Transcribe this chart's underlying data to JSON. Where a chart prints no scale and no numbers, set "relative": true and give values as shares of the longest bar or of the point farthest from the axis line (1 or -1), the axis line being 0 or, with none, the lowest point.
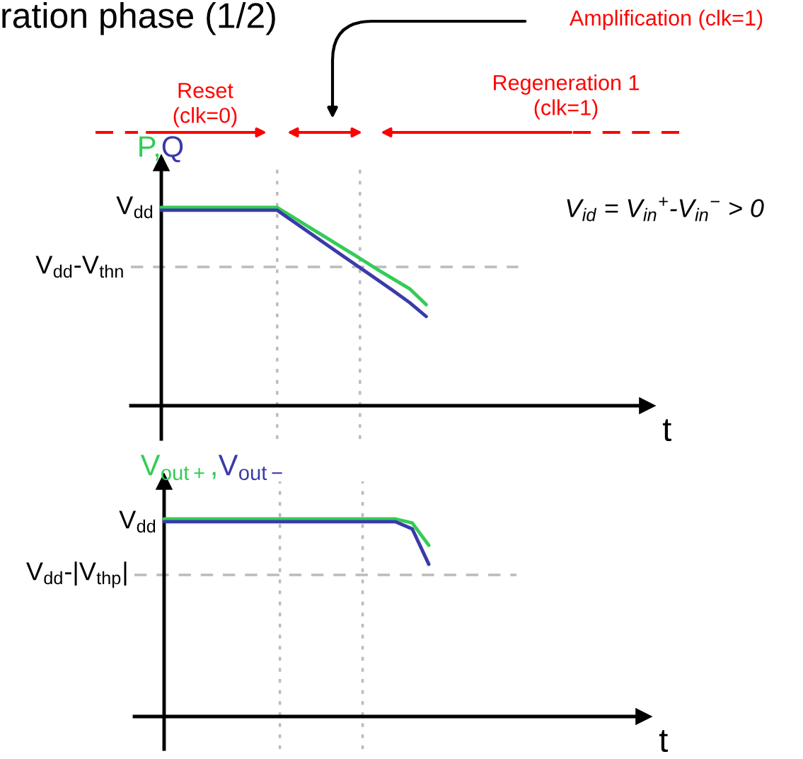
{
  "chart_data": [
    {
      "type": "line",
      "title": "ration phase (1/2)",
      "xlabel": "t",
      "categories": [
        null,
        null,
        null,
        null,
        null,
        null,
        null,
        null,
        null,
        null,
        null,
        null,
        null,
        null,
        null,
        null,
        null,
        null,
        null,
        null,
        null,
        null,
        null,
        null,
        null,
        null,
        null,
        null,
        null,
        null
      ],
      "relative": true,
      "series": [
        {
          "name": "P,",
          "color": "#33cc55",
          "values": [
            1,
            1,
            1,
            1,
            1,
            1,
            1,
            1,
            0.949,
            0.897,
            0.846,
            0.794,
            0.743,
            0.69,
            0.64,
            0.59,
            0.51,
            null,
            null,
            null,
            null,
            null,
            null,
            null,
            null,
            null,
            null,
            null,
            null,
            null
          ]
        },
        {
          "name": "Q",
          "color": "#3a3aaa",
          "values": [
            0.986,
            0.986,
            0.986,
            0.986,
            0.986,
            0.986,
            0.986,
            0.986,
            0.928,
            0.87,
            0.812,
            0.754,
            0.696,
            0.638,
            0.58,
            0.52,
            0.45,
            null,
            null,
            null,
            null,
            null,
            null,
            null,
            null,
            null,
            null,
            null,
            null,
            null
          ]
        }
      ],
      "ref_lines": [
        {
          "axis": "y",
          "value": 0.7,
          "label": "V$_{dd}$-V$_{thn}$",
          "color": "#bbbbbb",
          "line_style": "dashed"
        }
      ],
      "annotations": [
        "V$_{id}$ = V$_{in}$$^{+}$-V$_{in}$$^{−}$ > 0",
        "Reset\n(clk=0)",
        "Amplification (clk=1)",
        "Regeneration 1\n(clk=1)",
        "V$_{dd}$"
      ]
    },
    {
      "type": "line",
      "xlabel": "t",
      "categories": [
        null,
        null,
        null,
        null,
        null,
        null,
        null,
        null,
        null,
        null,
        null,
        null,
        null,
        null,
        null,
        null,
        null,
        null,
        null,
        null,
        null,
        null,
        null,
        null,
        null,
        null,
        null,
        null,
        null,
        null
      ],
      "relative": true,
      "series": [
        {
          "name": "V$_{out+}$,",
          "color": "#33cc55",
          "values": [
            1,
            1,
            1,
            1,
            1,
            1,
            1,
            1,
            1,
            1,
            1,
            1,
            1,
            1,
            1,
            0.98,
            0.867,
            null,
            null,
            null,
            null,
            null,
            null,
            null,
            null,
            null,
            null,
            null,
            null,
            null
          ]
        },
        {
          "name": "V$_{out−}$",
          "color": "#3a3aaa",
          "values": [
            0.986,
            0.986,
            0.986,
            0.986,
            0.986,
            0.986,
            0.986,
            0.986,
            0.986,
            0.986,
            0.986,
            0.986,
            0.986,
            0.986,
            0.986,
            0.95,
            0.771,
            null,
            null,
            null,
            null,
            null,
            null,
            null,
            null,
            null,
            null,
            null,
            null,
            null
          ]
        }
      ],
      "ref_lines": [
        {
          "axis": "y",
          "value": 0.717,
          "label": "V$_{dd}$-|V$_{thp}$|",
          "color": "#bbbbbb",
          "line_style": "dashed"
        }
      ],
      "annotations": [
        "V$_{dd}$"
      ]
    }
  ]
}
